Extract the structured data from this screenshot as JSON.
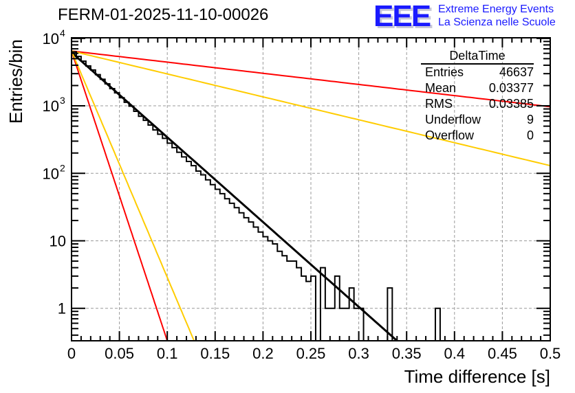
{
  "title": "FERM-01-2025-11-10-00026",
  "logo": {
    "mark": "EEE",
    "line1": "Extreme Energy Events",
    "line2": "La Scienza nelle Scuole",
    "color": "#1a1aff"
  },
  "stats": {
    "name": "DeltaTime",
    "rows": [
      {
        "label": "Entries",
        "value": "46637"
      },
      {
        "label": "Mean",
        "value": "0.03377"
      },
      {
        "label": "RMS",
        "value": "0.03385"
      },
      {
        "label": "Underflow",
        "value": "9"
      },
      {
        "label": "Overflow",
        "value": "0"
      }
    ]
  },
  "chart_data": {
    "type": "line",
    "title": "FERM-01-2025-11-10-00026",
    "xlabel": "Time difference [s]",
    "ylabel": "Entries/bin",
    "xlim": [
      0,
      0.5
    ],
    "ylim": [
      0.33,
      10200
    ],
    "yscale": "log",
    "grid": true,
    "x_ticks": [
      "0",
      "0.05",
      "0.1",
      "0.15",
      "0.2",
      "0.25",
      "0.3",
      "0.35",
      "0.4",
      "0.45",
      "0.5"
    ],
    "x_tick_values": [
      0,
      0.05,
      0.1,
      0.15,
      0.2,
      0.25,
      0.3,
      0.35,
      0.4,
      0.45,
      0.5
    ],
    "y_ticks": [
      {
        "value": 10000,
        "base": "10",
        "exp": "4"
      },
      {
        "value": 1000,
        "base": "10",
        "exp": "3"
      },
      {
        "value": 100,
        "base": "10",
        "exp": "2"
      },
      {
        "value": 10,
        "base": "10",
        "exp": ""
      },
      {
        "value": 1,
        "base": "1",
        "exp": ""
      }
    ],
    "histogram": {
      "name": "DeltaTime",
      "bin_width": 0.005,
      "color": "#000000",
      "bins": [
        [
          0.0,
          6300
        ],
        [
          0.005,
          5400
        ],
        [
          0.01,
          4600
        ],
        [
          0.015,
          3900
        ],
        [
          0.02,
          3400
        ],
        [
          0.025,
          2900
        ],
        [
          0.03,
          2480
        ],
        [
          0.035,
          2120
        ],
        [
          0.04,
          1800
        ],
        [
          0.045,
          1560
        ],
        [
          0.05,
          1320
        ],
        [
          0.055,
          1130
        ],
        [
          0.06,
          990
        ],
        [
          0.065,
          830
        ],
        [
          0.07,
          700
        ],
        [
          0.075,
          610
        ],
        [
          0.08,
          520
        ],
        [
          0.085,
          440
        ],
        [
          0.09,
          380
        ],
        [
          0.095,
          330
        ],
        [
          0.1,
          280
        ],
        [
          0.105,
          240
        ],
        [
          0.11,
          205
        ],
        [
          0.115,
          175
        ],
        [
          0.12,
          150
        ],
        [
          0.125,
          130
        ],
        [
          0.13,
          108
        ],
        [
          0.135,
          95
        ],
        [
          0.14,
          80
        ],
        [
          0.145,
          68
        ],
        [
          0.15,
          58
        ],
        [
          0.155,
          50
        ],
        [
          0.16,
          42
        ],
        [
          0.165,
          36
        ],
        [
          0.17,
          31
        ],
        [
          0.175,
          26
        ],
        [
          0.18,
          22
        ],
        [
          0.185,
          19
        ],
        [
          0.19,
          16
        ],
        [
          0.195,
          13.5
        ],
        [
          0.2,
          11.5
        ],
        [
          0.205,
          10
        ],
        [
          0.21,
          9
        ],
        [
          0.215,
          7
        ],
        [
          0.22,
          6
        ],
        [
          0.225,
          5
        ],
        [
          0.23,
          5
        ],
        [
          0.235,
          4
        ],
        [
          0.24,
          3
        ],
        [
          0.245,
          2.5
        ],
        [
          0.25,
          3
        ],
        [
          0.255,
          0
        ],
        [
          0.26,
          4
        ],
        [
          0.265,
          1
        ],
        [
          0.27,
          1
        ],
        [
          0.275,
          3
        ],
        [
          0.28,
          1
        ],
        [
          0.285,
          1
        ],
        [
          0.29,
          2
        ],
        [
          0.295,
          1
        ],
        [
          0.3,
          1
        ],
        [
          0.305,
          0
        ],
        [
          0.31,
          0
        ],
        [
          0.315,
          0
        ],
        [
          0.32,
          0
        ],
        [
          0.325,
          0
        ],
        [
          0.33,
          2
        ],
        [
          0.335,
          0
        ],
        [
          0.38,
          1
        ]
      ]
    },
    "series": [
      {
        "name": "fit",
        "color": "#000000",
        "x": [
          0.0,
          0.34
        ],
        "values": [
          6200,
          0.33
        ],
        "model": "exponential"
      },
      {
        "name": "red-steep",
        "color": "#ff0000",
        "x": [
          0.0,
          0.1
        ],
        "values": [
          6500,
          0.33
        ],
        "model": "exponential"
      },
      {
        "name": "yellow-steep",
        "color": "#ffcc00",
        "x": [
          0.0,
          0.128
        ],
        "values": [
          6500,
          0.33
        ],
        "model": "exponential"
      },
      {
        "name": "red-shallow",
        "color": "#ff0000",
        "x": [
          0.0,
          0.5
        ],
        "values": [
          6500,
          970
        ],
        "model": "exponential"
      },
      {
        "name": "yellow-shallow",
        "color": "#ffcc00",
        "x": [
          0.0,
          0.5
        ],
        "values": [
          6500,
          130
        ],
        "model": "exponential"
      }
    ]
  }
}
